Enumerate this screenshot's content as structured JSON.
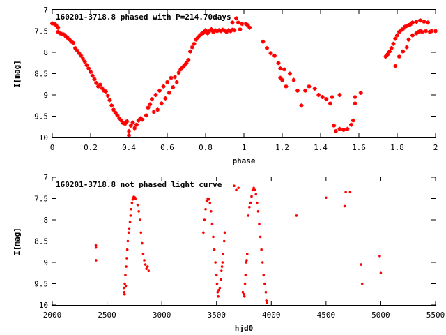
{
  "chart_data": [
    {
      "type": "scatter",
      "title": "160201-3718.8 phased with P=214.70days",
      "xlabel": "phase",
      "ylabel": "I[mag]",
      "xlim": [
        0,
        2
      ],
      "ylim": [
        10,
        7
      ],
      "y_inverted": true,
      "grid": false,
      "legend": "none",
      "marker_color": "#ff0000",
      "marker": "cross",
      "x_ticks": [
        0,
        0.2,
        0.4,
        0.6,
        0.8,
        1,
        1.2,
        1.4,
        1.6,
        1.8,
        2
      ],
      "x_tick_labels": [
        "0",
        "0.2",
        "0.4",
        "0.6",
        "0.8",
        "1",
        "1.2",
        "1.4",
        "1.6",
        "1.8",
        "2"
      ],
      "y_ticks": [
        7,
        7.5,
        8,
        8.5,
        9,
        9.5,
        10
      ],
      "y_tick_labels": [
        "7",
        "7.5",
        "8",
        "8.5",
        "9",
        "9.5",
        "10"
      ],
      "points": [
        [
          0.0,
          7.32
        ],
        [
          0.01,
          7.33
        ],
        [
          0.02,
          7.36
        ],
        [
          0.03,
          7.42
        ],
        [
          0.03,
          7.52
        ],
        [
          0.04,
          7.55
        ],
        [
          0.05,
          7.57
        ],
        [
          0.06,
          7.58
        ],
        [
          0.07,
          7.62
        ],
        [
          0.08,
          7.66
        ],
        [
          0.09,
          7.7
        ],
        [
          0.1,
          7.75
        ],
        [
          0.11,
          7.78
        ],
        [
          0.12,
          7.9
        ],
        [
          0.13,
          7.96
        ],
        [
          0.14,
          8.02
        ],
        [
          0.15,
          8.08
        ],
        [
          0.16,
          8.15
        ],
        [
          0.17,
          8.22
        ],
        [
          0.18,
          8.3
        ],
        [
          0.19,
          8.38
        ],
        [
          0.2,
          8.46
        ],
        [
          0.21,
          8.55
        ],
        [
          0.22,
          8.63
        ],
        [
          0.23,
          8.72
        ],
        [
          0.24,
          8.8
        ],
        [
          0.25,
          8.76
        ],
        [
          0.26,
          8.84
        ],
        [
          0.27,
          8.9
        ],
        [
          0.28,
          8.92
        ],
        [
          0.29,
          9.02
        ],
        [
          0.3,
          9.12
        ],
        [
          0.31,
          9.25
        ],
        [
          0.32,
          9.35
        ],
        [
          0.33,
          9.42
        ],
        [
          0.34,
          9.48
        ],
        [
          0.35,
          9.55
        ],
        [
          0.36,
          9.6
        ],
        [
          0.37,
          9.66
        ],
        [
          0.38,
          9.68
        ],
        [
          0.39,
          9.62
        ],
        [
          0.4,
          9.85
        ],
        [
          0.4,
          9.95
        ],
        [
          0.41,
          9.72
        ],
        [
          0.42,
          9.65
        ],
        [
          0.43,
          9.78
        ],
        [
          0.44,
          9.7
        ],
        [
          0.45,
          9.6
        ],
        [
          0.46,
          9.55
        ],
        [
          0.47,
          9.58
        ],
        [
          0.49,
          9.48
        ],
        [
          0.5,
          9.3
        ],
        [
          0.51,
          9.22
        ],
        [
          0.52,
          9.1
        ],
        [
          0.53,
          9.4
        ],
        [
          0.54,
          9.0
        ],
        [
          0.55,
          9.35
        ],
        [
          0.56,
          8.9
        ],
        [
          0.57,
          9.2
        ],
        [
          0.58,
          8.8
        ],
        [
          0.59,
          9.08
        ],
        [
          0.6,
          8.7
        ],
        [
          0.61,
          8.95
        ],
        [
          0.62,
          8.6
        ],
        [
          0.63,
          8.82
        ],
        [
          0.64,
          8.58
        ],
        [
          0.65,
          8.7
        ],
        [
          0.66,
          8.48
        ],
        [
          0.67,
          8.4
        ],
        [
          0.68,
          8.35
        ],
        [
          0.69,
          8.3
        ],
        [
          0.7,
          8.25
        ],
        [
          0.71,
          8.18
        ],
        [
          0.72,
          7.98
        ],
        [
          0.73,
          7.88
        ],
        [
          0.74,
          7.8
        ],
        [
          0.75,
          7.7
        ],
        [
          0.76,
          7.65
        ],
        [
          0.77,
          7.6
        ],
        [
          0.78,
          7.56
        ],
        [
          0.79,
          7.54
        ],
        [
          0.8,
          7.48
        ],
        [
          0.81,
          7.55
        ],
        [
          0.82,
          7.5
        ],
        [
          0.83,
          7.46
        ],
        [
          0.84,
          7.52
        ],
        [
          0.85,
          7.48
        ],
        [
          0.86,
          7.5
        ],
        [
          0.87,
          7.48
        ],
        [
          0.88,
          7.5
        ],
        [
          0.89,
          7.47
        ],
        [
          0.9,
          7.49
        ],
        [
          0.91,
          7.52
        ],
        [
          0.92,
          7.48
        ],
        [
          0.93,
          7.5
        ],
        [
          0.94,
          7.47
        ],
        [
          0.94,
          7.3
        ],
        [
          0.95,
          7.48
        ],
        [
          0.96,
          7.2
        ],
        [
          0.97,
          7.3
        ],
        [
          0.98,
          7.46
        ],
        [
          0.99,
          7.33
        ],
        [
          1.01,
          7.33
        ],
        [
          1.02,
          7.36
        ],
        [
          1.03,
          7.42
        ],
        [
          1.1,
          7.75
        ],
        [
          1.12,
          7.9
        ],
        [
          1.14,
          8.02
        ],
        [
          1.16,
          8.08
        ],
        [
          1.18,
          8.25
        ],
        [
          1.19,
          8.38
        ],
        [
          1.21,
          8.4
        ],
        [
          1.19,
          8.6
        ],
        [
          1.2,
          8.65
        ],
        [
          1.22,
          8.8
        ],
        [
          1.24,
          8.5
        ],
        [
          1.26,
          8.65
        ],
        [
          1.28,
          8.9
        ],
        [
          1.3,
          9.25
        ],
        [
          1.32,
          8.9
        ],
        [
          1.34,
          8.8
        ],
        [
          1.37,
          8.85
        ],
        [
          1.39,
          9.0
        ],
        [
          1.41,
          9.05
        ],
        [
          1.43,
          9.1
        ],
        [
          1.45,
          9.2
        ],
        [
          1.47,
          9.72
        ],
        [
          1.48,
          9.85
        ],
        [
          1.5,
          9.8
        ],
        [
          1.52,
          9.82
        ],
        [
          1.54,
          9.8
        ],
        [
          1.56,
          9.7
        ],
        [
          1.57,
          9.6
        ],
        [
          1.58,
          9.2
        ],
        [
          1.58,
          9.05
        ],
        [
          1.61,
          8.95
        ],
        [
          1.5,
          9.0
        ],
        [
          1.46,
          9.05
        ],
        [
          1.74,
          8.1
        ],
        [
          1.75,
          8.05
        ],
        [
          1.76,
          7.98
        ],
        [
          1.77,
          7.9
        ],
        [
          1.78,
          7.8
        ],
        [
          1.79,
          7.68
        ],
        [
          1.8,
          7.6
        ],
        [
          1.81,
          7.52
        ],
        [
          1.82,
          7.48
        ],
        [
          1.83,
          7.45
        ],
        [
          1.84,
          7.4
        ],
        [
          1.85,
          7.38
        ],
        [
          1.86,
          7.36
        ],
        [
          1.87,
          7.34
        ],
        [
          1.88,
          7.3
        ],
        [
          1.9,
          7.55
        ],
        [
          1.91,
          7.52
        ],
        [
          1.92,
          7.5
        ],
        [
          1.93,
          7.52
        ],
        [
          1.95,
          7.5
        ],
        [
          1.97,
          7.52
        ],
        [
          1.98,
          7.5
        ],
        [
          2.0,
          7.5
        ],
        [
          1.9,
          7.28
        ],
        [
          1.92,
          7.25
        ],
        [
          1.94,
          7.28
        ],
        [
          1.96,
          7.3
        ],
        [
          1.79,
          8.32
        ],
        [
          1.81,
          8.1
        ],
        [
          1.83,
          7.98
        ],
        [
          1.85,
          7.88
        ],
        [
          1.86,
          7.7
        ],
        [
          1.88,
          7.6
        ]
      ]
    },
    {
      "type": "scatter",
      "title": "160201-3718.8 not phased light curve",
      "xlabel": "hjd0",
      "ylabel": "I[mag]",
      "xlim": [
        2000,
        5500
      ],
      "ylim": [
        10,
        7
      ],
      "y_inverted": true,
      "grid": false,
      "legend": "none",
      "marker_color": "#ff0000",
      "marker": "dot",
      "x_ticks": [
        2000,
        2500,
        3000,
        3500,
        4000,
        4500,
        5000,
        5500
      ],
      "x_tick_labels": [
        "2000",
        "2500",
        "3000",
        "3500",
        "4000",
        "4500",
        "5000",
        "5500"
      ],
      "y_ticks": [
        7,
        7.5,
        8,
        8.5,
        9,
        9.5,
        10
      ],
      "y_tick_labels": [
        "7",
        "7.5",
        "8",
        "8.5",
        "9",
        "9.5",
        "10"
      ],
      "points": [
        [
          2398,
          8.6
        ],
        [
          2399,
          8.65
        ],
        [
          2400,
          8.95
        ],
        [
          2655,
          9.6
        ],
        [
          2658,
          9.7
        ],
        [
          2662,
          9.5
        ],
        [
          2668,
          9.3
        ],
        [
          2675,
          9.1
        ],
        [
          2680,
          8.9
        ],
        [
          2685,
          8.7
        ],
        [
          2690,
          8.5
        ],
        [
          2698,
          8.3
        ],
        [
          2703,
          8.2
        ],
        [
          2710,
          8.05
        ],
        [
          2715,
          7.9
        ],
        [
          2720,
          7.75
        ],
        [
          2728,
          7.6
        ],
        [
          2735,
          7.52
        ],
        [
          2740,
          7.48
        ],
        [
          2745,
          7.46
        ],
        [
          2750,
          7.47
        ],
        [
          2755,
          7.48
        ],
        [
          2760,
          7.5
        ],
        [
          2780,
          7.65
        ],
        [
          2790,
          7.8
        ],
        [
          2800,
          8.0
        ],
        [
          2810,
          8.3
        ],
        [
          2820,
          8.55
        ],
        [
          2830,
          8.8
        ],
        [
          2840,
          8.95
        ],
        [
          2850,
          9.05
        ],
        [
          2860,
          9.15
        ],
        [
          2870,
          9.1
        ],
        [
          2880,
          9.2
        ],
        [
          2660,
          9.75
        ],
        [
          2672,
          9.55
        ],
        [
          3380,
          8.3
        ],
        [
          3390,
          8.0
        ],
        [
          3400,
          7.75
        ],
        [
          3410,
          7.55
        ],
        [
          3420,
          7.5
        ],
        [
          3430,
          7.52
        ],
        [
          3440,
          7.6
        ],
        [
          3450,
          7.8
        ],
        [
          3460,
          8.1
        ],
        [
          3470,
          8.4
        ],
        [
          3480,
          8.7
        ],
        [
          3490,
          9.0
        ],
        [
          3500,
          9.3
        ],
        [
          3505,
          9.5
        ],
        [
          3510,
          9.7
        ],
        [
          3515,
          9.8
        ],
        [
          3520,
          9.65
        ],
        [
          3530,
          9.6
        ],
        [
          3540,
          9.4
        ],
        [
          3550,
          9.1
        ],
        [
          3560,
          8.8
        ],
        [
          3570,
          8.5
        ],
        [
          3575,
          8.3
        ],
        [
          3545,
          9.2
        ],
        [
          3555,
          9.0
        ],
        [
          3660,
          7.2
        ],
        [
          3680,
          7.3
        ],
        [
          3700,
          7.25
        ],
        [
          3740,
          9.7
        ],
        [
          3750,
          9.75
        ],
        [
          3755,
          9.8
        ],
        [
          3760,
          9.5
        ],
        [
          3765,
          9.3
        ],
        [
          3770,
          9.0
        ],
        [
          3775,
          8.95
        ],
        [
          3780,
          8.8
        ],
        [
          3790,
          7.9
        ],
        [
          3800,
          7.7
        ],
        [
          3810,
          7.6
        ],
        [
          3820,
          7.45
        ],
        [
          3830,
          7.3
        ],
        [
          3840,
          7.25
        ],
        [
          3850,
          7.3
        ],
        [
          3860,
          7.4
        ],
        [
          3870,
          7.6
        ],
        [
          3880,
          7.8
        ],
        [
          3890,
          8.1
        ],
        [
          3900,
          8.4
        ],
        [
          3910,
          8.7
        ],
        [
          3920,
          9.0
        ],
        [
          3930,
          9.3
        ],
        [
          3940,
          9.5
        ],
        [
          3950,
          9.7
        ],
        [
          3955,
          9.9
        ],
        [
          3960,
          9.95
        ],
        [
          4230,
          7.9
        ],
        [
          4500,
          7.48
        ],
        [
          4670,
          7.68
        ],
        [
          4680,
          7.35
        ],
        [
          4720,
          7.35
        ],
        [
          4820,
          9.05
        ],
        [
          4830,
          9.5
        ],
        [
          4990,
          8.85
        ],
        [
          5000,
          9.25
        ]
      ]
    }
  ]
}
